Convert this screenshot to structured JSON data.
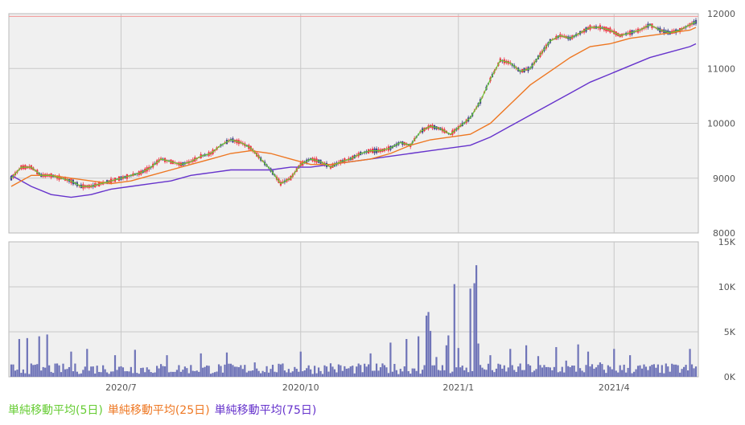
{
  "chart_data": [
    {
      "type": "candlestick",
      "y_ticks": [
        "12000",
        "11000",
        "10000",
        "9000",
        "8000"
      ],
      "ylim": [
        8000,
        12000
      ],
      "x_ticks": [
        "2020/7",
        "2020/10",
        "2021/1",
        "2021/4"
      ],
      "grid": true,
      "reference_line": 11950,
      "ma5": [
        [
          0,
          9000
        ],
        [
          5,
          9200
        ],
        [
          10,
          9200
        ],
        [
          15,
          9050
        ],
        [
          20,
          9050
        ],
        [
          25,
          9000
        ],
        [
          30,
          8950
        ],
        [
          35,
          8850
        ],
        [
          40,
          8850
        ],
        [
          45,
          8900
        ],
        [
          50,
          8950
        ],
        [
          55,
          9000
        ],
        [
          60,
          9050
        ],
        [
          65,
          9100
        ],
        [
          70,
          9200
        ],
        [
          75,
          9350
        ],
        [
          80,
          9300
        ],
        [
          85,
          9250
        ],
        [
          90,
          9300
        ],
        [
          95,
          9400
        ],
        [
          100,
          9450
        ],
        [
          105,
          9600
        ],
        [
          110,
          9700
        ],
        [
          115,
          9650
        ],
        [
          120,
          9550
        ],
        [
          125,
          9350
        ],
        [
          130,
          9150
        ],
        [
          135,
          8900
        ],
        [
          140,
          9000
        ],
        [
          145,
          9250
        ],
        [
          150,
          9350
        ],
        [
          155,
          9300
        ],
        [
          160,
          9200
        ],
        [
          165,
          9300
        ],
        [
          170,
          9350
        ],
        [
          175,
          9450
        ],
        [
          180,
          9500
        ],
        [
          185,
          9500
        ],
        [
          190,
          9550
        ],
        [
          195,
          9650
        ],
        [
          200,
          9600
        ],
        [
          205,
          9850
        ],
        [
          210,
          9950
        ],
        [
          215,
          9900
        ],
        [
          220,
          9800
        ],
        [
          225,
          9950
        ],
        [
          230,
          10100
        ],
        [
          235,
          10400
        ],
        [
          240,
          10800
        ],
        [
          245,
          11150
        ],
        [
          250,
          11100
        ],
        [
          255,
          10950
        ],
        [
          260,
          11000
        ],
        [
          265,
          11250
        ],
        [
          270,
          11500
        ],
        [
          275,
          11600
        ],
        [
          280,
          11550
        ],
        [
          285,
          11650
        ],
        [
          290,
          11750
        ],
        [
          295,
          11750
        ],
        [
          300,
          11700
        ],
        [
          305,
          11600
        ],
        [
          310,
          11650
        ],
        [
          315,
          11700
        ],
        [
          320,
          11800
        ],
        [
          325,
          11700
        ],
        [
          330,
          11650
        ],
        [
          335,
          11700
        ],
        [
          340,
          11800
        ],
        [
          343,
          11850
        ]
      ],
      "ma25": [
        [
          0,
          8850
        ],
        [
          10,
          9050
        ],
        [
          20,
          9050
        ],
        [
          30,
          9000
        ],
        [
          40,
          8950
        ],
        [
          50,
          8900
        ],
        [
          60,
          8950
        ],
        [
          70,
          9050
        ],
        [
          80,
          9150
        ],
        [
          90,
          9250
        ],
        [
          100,
          9350
        ],
        [
          110,
          9450
        ],
        [
          120,
          9500
        ],
        [
          130,
          9450
        ],
        [
          140,
          9350
        ],
        [
          150,
          9250
        ],
        [
          160,
          9250
        ],
        [
          170,
          9300
        ],
        [
          180,
          9350
        ],
        [
          190,
          9450
        ],
        [
          200,
          9600
        ],
        [
          210,
          9700
        ],
        [
          220,
          9750
        ],
        [
          230,
          9800
        ],
        [
          240,
          10000
        ],
        [
          250,
          10350
        ],
        [
          260,
          10700
        ],
        [
          270,
          10950
        ],
        [
          280,
          11200
        ],
        [
          290,
          11400
        ],
        [
          300,
          11450
        ],
        [
          310,
          11550
        ],
        [
          320,
          11600
        ],
        [
          330,
          11650
        ],
        [
          340,
          11700
        ],
        [
          343,
          11750
        ]
      ],
      "ma75": [
        [
          0,
          9050
        ],
        [
          10,
          8850
        ],
        [
          20,
          8700
        ],
        [
          30,
          8650
        ],
        [
          40,
          8700
        ],
        [
          50,
          8800
        ],
        [
          60,
          8850
        ],
        [
          70,
          8900
        ],
        [
          80,
          8950
        ],
        [
          90,
          9050
        ],
        [
          100,
          9100
        ],
        [
          110,
          9150
        ],
        [
          120,
          9150
        ],
        [
          130,
          9150
        ],
        [
          140,
          9200
        ],
        [
          150,
          9200
        ],
        [
          160,
          9250
        ],
        [
          170,
          9300
        ],
        [
          180,
          9350
        ],
        [
          190,
          9400
        ],
        [
          200,
          9450
        ],
        [
          210,
          9500
        ],
        [
          220,
          9550
        ],
        [
          230,
          9600
        ],
        [
          240,
          9750
        ],
        [
          250,
          9950
        ],
        [
          260,
          10150
        ],
        [
          270,
          10350
        ],
        [
          280,
          10550
        ],
        [
          290,
          10750
        ],
        [
          300,
          10900
        ],
        [
          310,
          11050
        ],
        [
          320,
          11200
        ],
        [
          330,
          11300
        ],
        [
          340,
          11400
        ],
        [
          343,
          11450
        ]
      ]
    },
    {
      "type": "bar",
      "y_ticks": [
        "15K",
        "10K",
        "5K",
        "0K"
      ],
      "ylim": [
        0,
        15000
      ],
      "x_ticks": [
        "2020/7",
        "2020/10",
        "2021/1",
        "2021/4"
      ],
      "grid": true,
      "spikes": [
        [
          4,
          4200
        ],
        [
          8,
          4300
        ],
        [
          14,
          4500
        ],
        [
          18,
          4700
        ],
        [
          30,
          2800
        ],
        [
          38,
          3100
        ],
        [
          52,
          2400
        ],
        [
          62,
          3000
        ],
        [
          78,
          2400
        ],
        [
          95,
          2600
        ],
        [
          108,
          2700
        ],
        [
          122,
          1600
        ],
        [
          145,
          2800
        ],
        [
          160,
          1500
        ],
        [
          180,
          2600
        ],
        [
          190,
          3800
        ],
        [
          198,
          4200
        ],
        [
          204,
          4500
        ],
        [
          208,
          6800
        ],
        [
          209,
          7200
        ],
        [
          210,
          5100
        ],
        [
          213,
          2200
        ],
        [
          218,
          3500
        ],
        [
          219,
          4600
        ],
        [
          222,
          10300
        ],
        [
          224,
          3200
        ],
        [
          230,
          9800
        ],
        [
          232,
          10400
        ],
        [
          233,
          12400
        ],
        [
          234,
          3700
        ],
        [
          240,
          2400
        ],
        [
          250,
          3100
        ],
        [
          258,
          3500
        ],
        [
          264,
          2300
        ],
        [
          273,
          3300
        ],
        [
          278,
          1800
        ],
        [
          284,
          3600
        ],
        [
          289,
          2800
        ],
        [
          295,
          1600
        ],
        [
          302,
          3100
        ],
        [
          310,
          2400
        ],
        [
          326,
          1300
        ],
        [
          340,
          3100
        ]
      ]
    }
  ],
  "legend": {
    "ma5": {
      "label": "単純移動平均(5日)",
      "color": "#66cc33"
    },
    "ma25": {
      "label": "単純移動平均(25日)",
      "color": "#ee7722"
    },
    "ma75": {
      "label": "単純移動平均(75日)",
      "color": "#6633cc"
    }
  },
  "colors": {
    "up": "#ee3344",
    "down": "#444488",
    "volume": "#6f74b8",
    "grid": "#c8c8c8",
    "plot_bg": "#f0f0f0",
    "ref_line": "#f2a0a0"
  }
}
